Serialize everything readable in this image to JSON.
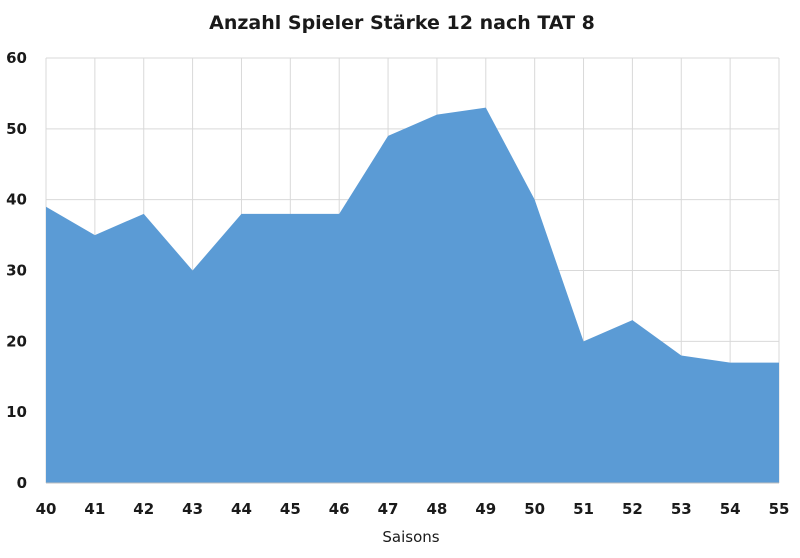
{
  "chart_data": {
    "type": "area",
    "title": "Anzahl Spieler Stärke 12 nach TAT 8",
    "xlabel": "Saisons",
    "ylabel": "",
    "x": [
      40,
      41,
      42,
      43,
      44,
      45,
      46,
      47,
      48,
      49,
      50,
      51,
      52,
      53,
      54,
      55
    ],
    "x_labels": [
      "40",
      "41",
      "42",
      "43",
      "44",
      "45",
      "46",
      "47",
      "48",
      "49",
      "50",
      "51",
      "52",
      "53",
      "54",
      "55"
    ],
    "series": [
      {
        "values": [
          39,
          35,
          38,
          30,
          38,
          38,
          38,
          49,
          52,
          53,
          40,
          20,
          23,
          18,
          17,
          17
        ]
      }
    ],
    "xlim": [
      40,
      55
    ],
    "ylim": [
      0,
      60
    ],
    "y_ticks": [
      0,
      10,
      20,
      30,
      40,
      50,
      60
    ],
    "grid": true,
    "legend": "none",
    "colors": {
      "fill": "#5b9bd5",
      "grid": "#d9d9d9",
      "text": "#1a1a1a"
    }
  }
}
